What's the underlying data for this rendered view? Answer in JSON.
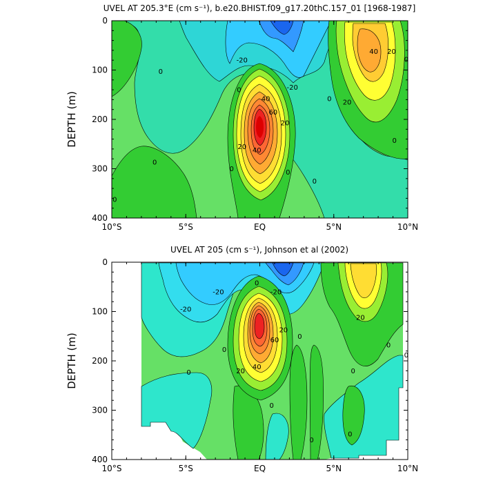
{
  "chart_data": [
    {
      "type": "contour",
      "title": "UVEL AT 205.3°E (cm s⁻¹), b.e20.BHIST.f09_g17.20thC.157_01 [1968-1987]",
      "ylabel": "DEPTH (m)",
      "xlabel": "",
      "x_ticks": [
        "10°S",
        "5°S",
        "EQ",
        "5°N",
        "10°N"
      ],
      "y_ticks": [
        "0",
        "100",
        "200",
        "300",
        "400"
      ],
      "xlim": [
        -10,
        10
      ],
      "ylim": [
        400,
        0
      ],
      "contour_interval": 10,
      "contour_labels": [
        {
          "text": "-20",
          "lat": -1.2,
          "depth": 80
        },
        {
          "text": "-20",
          "lat": 2.2,
          "depth": 135
        },
        {
          "text": "0",
          "lat": -6.7,
          "depth": 103
        },
        {
          "text": "0",
          "lat": -1.4,
          "depth": 140
        },
        {
          "text": "40",
          "lat": 0.4,
          "depth": 158
        },
        {
          "text": "60",
          "lat": 0.9,
          "depth": 185
        },
        {
          "text": "20",
          "lat": 1.7,
          "depth": 207
        },
        {
          "text": "20",
          "lat": -1.2,
          "depth": 255
        },
        {
          "text": "40",
          "lat": -0.2,
          "depth": 262
        },
        {
          "text": "0",
          "lat": -1.9,
          "depth": 300
        },
        {
          "text": "0",
          "lat": 1.9,
          "depth": 307
        },
        {
          "text": "0",
          "lat": -7.1,
          "depth": 287
        },
        {
          "text": "0",
          "lat": -9.8,
          "depth": 362
        },
        {
          "text": "0",
          "lat": 3.7,
          "depth": 325
        },
        {
          "text": "0",
          "lat": 4.7,
          "depth": 158
        },
        {
          "text": "40",
          "lat": 7.7,
          "depth": 62
        },
        {
          "text": "20",
          "lat": 8.9,
          "depth": 62
        },
        {
          "text": "20",
          "lat": 5.9,
          "depth": 165
        },
        {
          "text": "0",
          "lat": 9.1,
          "depth": 243
        },
        {
          "text": "0",
          "lat": 9.9,
          "depth": 78
        }
      ],
      "features": [
        {
          "name": "EUC core",
          "lat": 0.0,
          "depth": 170,
          "max_value": 80
        },
        {
          "name": "NECC",
          "lat": 7.5,
          "depth": 60,
          "max_value": 45
        },
        {
          "name": "SEC",
          "lat": 1.5,
          "depth": 0,
          "min_value": -50
        }
      ]
    },
    {
      "type": "contour",
      "title": "UVEL AT 205 (cm s⁻¹), Johnson et al (2002)",
      "ylabel": "DEPTH (m)",
      "xlabel": "",
      "x_ticks": [
        "10°S",
        "5°S",
        "EQ",
        "5°N",
        "10°N"
      ],
      "y_ticks": [
        "0",
        "100",
        "200",
        "300",
        "400"
      ],
      "xlim": [
        -10,
        10
      ],
      "ylim": [
        400,
        0
      ],
      "contour_interval": 10,
      "contour_labels": [
        {
          "text": "-20",
          "lat": -5.0,
          "depth": 95
        },
        {
          "text": "-20",
          "lat": -2.8,
          "depth": 60
        },
        {
          "text": "-20",
          "lat": 1.1,
          "depth": 60
        },
        {
          "text": "0",
          "lat": -0.2,
          "depth": 42
        },
        {
          "text": "0",
          "lat": -2.4,
          "depth": 177
        },
        {
          "text": "0",
          "lat": -4.8,
          "depth": 223
        },
        {
          "text": "0",
          "lat": 0.8,
          "depth": 290
        },
        {
          "text": "0",
          "lat": 2.7,
          "depth": 150
        },
        {
          "text": "0",
          "lat": 3.5,
          "depth": 360
        },
        {
          "text": "0",
          "lat": 6.3,
          "depth": 220
        },
        {
          "text": "0",
          "lat": 8.7,
          "depth": 168
        },
        {
          "text": "0",
          "lat": 9.9,
          "depth": 188
        },
        {
          "text": "0",
          "lat": 6.1,
          "depth": 348
        },
        {
          "text": "20",
          "lat": 1.6,
          "depth": 137
        },
        {
          "text": "60",
          "lat": 1.0,
          "depth": 157
        },
        {
          "text": "40",
          "lat": -0.2,
          "depth": 212
        },
        {
          "text": "20",
          "lat": -1.3,
          "depth": 220
        },
        {
          "text": "20",
          "lat": 6.8,
          "depth": 112
        }
      ],
      "features": [
        {
          "name": "EUC core",
          "lat": -0.1,
          "depth": 135,
          "max_value": 85
        },
        {
          "name": "NECC",
          "lat": 6.5,
          "depth": 45,
          "max_value": 35
        },
        {
          "name": "SEC",
          "lat": 1.5,
          "depth": 20,
          "min_value": -45
        }
      ]
    }
  ]
}
